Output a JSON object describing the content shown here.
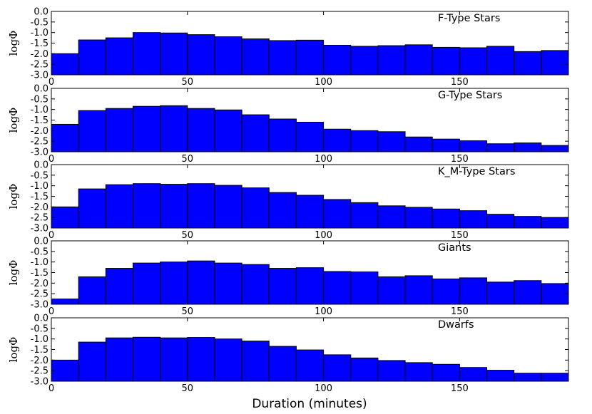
{
  "figure": {
    "xlabel": "Duration (minutes)"
  },
  "chart_data": [
    {
      "type": "bar",
      "title": "F-Type Stars",
      "xlabel": "",
      "ylabel": "logΦ",
      "bin_edges": [
        0,
        10,
        20,
        30,
        40,
        50,
        60,
        70,
        80,
        90,
        100,
        110,
        120,
        130,
        140,
        150,
        160,
        170,
        180,
        190
      ],
      "values": [
        -2.0,
        -1.35,
        -1.25,
        -1.0,
        -1.02,
        -1.1,
        -1.2,
        -1.3,
        -1.38,
        -1.36,
        -1.6,
        -1.65,
        -1.62,
        -1.58,
        -1.7,
        -1.72,
        -1.65,
        -1.9,
        -1.85
      ],
      "xlim": [
        0,
        190
      ],
      "ylim": [
        -3.0,
        0.0
      ],
      "xticks": [
        "0",
        "50",
        "100",
        "150"
      ],
      "yticks": [
        "0.0",
        "-0.5",
        "-1.0",
        "-1.5",
        "-2.0",
        "-2.5",
        "-3.0"
      ],
      "bar_color": "#0000ff"
    },
    {
      "type": "bar",
      "title": "G-Type Stars",
      "xlabel": "",
      "ylabel": "logΦ",
      "bin_edges": [
        0,
        10,
        20,
        30,
        40,
        50,
        60,
        70,
        80,
        90,
        100,
        110,
        120,
        130,
        140,
        150,
        160,
        170,
        180,
        190
      ],
      "values": [
        -1.7,
        -1.05,
        -0.95,
        -0.85,
        -0.82,
        -0.95,
        -1.02,
        -1.25,
        -1.45,
        -1.6,
        -1.93,
        -2.0,
        -2.05,
        -2.3,
        -2.4,
        -2.48,
        -2.62,
        -2.58,
        -2.7
      ],
      "xlim": [
        0,
        190
      ],
      "ylim": [
        -3.0,
        0.0
      ],
      "xticks": [
        "0",
        "50",
        "100",
        "150"
      ],
      "yticks": [
        "0.0",
        "-0.5",
        "-1.0",
        "-1.5",
        "-2.0",
        "-2.5",
        "-3.0"
      ],
      "bar_color": "#0000ff"
    },
    {
      "type": "bar",
      "title": "K_M-Type Stars",
      "xlabel": "",
      "ylabel": "logΦ",
      "bin_edges": [
        0,
        10,
        20,
        30,
        40,
        50,
        60,
        70,
        80,
        90,
        100,
        110,
        120,
        130,
        140,
        150,
        160,
        170,
        180,
        190
      ],
      "values": [
        -2.0,
        -1.15,
        -0.95,
        -0.9,
        -0.93,
        -0.9,
        -0.98,
        -1.1,
        -1.32,
        -1.45,
        -1.65,
        -1.8,
        -1.95,
        -2.02,
        -2.1,
        -2.18,
        -2.35,
        -2.45,
        -2.5
      ],
      "xlim": [
        0,
        190
      ],
      "ylim": [
        -3.0,
        0.0
      ],
      "xticks": [
        "0",
        "50",
        "100",
        "150"
      ],
      "yticks": [
        "0.0",
        "-0.5",
        "-1.0",
        "-1.5",
        "-2.0",
        "-2.5",
        "-3.0"
      ],
      "bar_color": "#0000ff"
    },
    {
      "type": "bar",
      "title": "Giants",
      "xlabel": "",
      "ylabel": "logΦ",
      "bin_edges": [
        0,
        10,
        20,
        30,
        40,
        50,
        60,
        70,
        80,
        90,
        100,
        110,
        120,
        130,
        140,
        150,
        160,
        170,
        180,
        190
      ],
      "values": [
        -2.75,
        -1.7,
        -1.3,
        -1.05,
        -1.0,
        -0.95,
        -1.05,
        -1.12,
        -1.3,
        -1.27,
        -1.45,
        -1.47,
        -1.7,
        -1.65,
        -1.8,
        -1.75,
        -1.95,
        -1.88,
        -2.02
      ],
      "xlim": [
        0,
        190
      ],
      "ylim": [
        -3.0,
        0.0
      ],
      "xticks": [
        "0",
        "50",
        "100",
        "150"
      ],
      "yticks": [
        "0.0",
        "-0.5",
        "-1.0",
        "-1.5",
        "-2.0",
        "-2.5",
        "-3.0"
      ],
      "bar_color": "#0000ff"
    },
    {
      "type": "bar",
      "title": "Dwarfs",
      "xlabel": "",
      "ylabel": "logΦ",
      "bin_edges": [
        0,
        10,
        20,
        30,
        40,
        50,
        60,
        70,
        80,
        90,
        100,
        110,
        120,
        130,
        140,
        150,
        160,
        170,
        180,
        190
      ],
      "values": [
        -2.0,
        -1.15,
        -0.95,
        -0.92,
        -0.95,
        -0.93,
        -1.0,
        -1.1,
        -1.35,
        -1.52,
        -1.75,
        -1.9,
        -2.02,
        -2.12,
        -2.2,
        -2.35,
        -2.48,
        -2.62,
        -2.62
      ],
      "xlim": [
        0,
        190
      ],
      "ylim": [
        -3.0,
        0.0
      ],
      "xticks": [
        "0",
        "50",
        "100",
        "150"
      ],
      "yticks": [
        "0.0",
        "-0.5",
        "-1.0",
        "-1.5",
        "-2.0",
        "-2.5",
        "-3.0"
      ],
      "bar_color": "#0000ff"
    }
  ]
}
